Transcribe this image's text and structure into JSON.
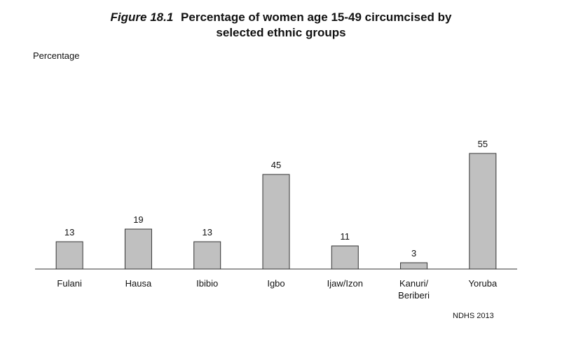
{
  "chart_data": {
    "type": "bar",
    "title_prefix": "Figure 18.1",
    "title_line1": "Percentage of women age 15-49 circumcised by",
    "title_line2": "selected ethnic groups",
    "ylabel": "Percentage",
    "xlabel": "",
    "source": "NDHS 2013",
    "categories": [
      [
        "Fulani"
      ],
      [
        "Hausa"
      ],
      [
        "Ibibio"
      ],
      [
        "Igbo"
      ],
      [
        "Ijaw/Izon"
      ],
      [
        "Kanuri/",
        "Beriberi"
      ],
      [
        "Yoruba"
      ]
    ],
    "values": [
      13,
      19,
      13,
      45,
      11,
      3,
      55
    ],
    "ylim": [
      0,
      60
    ],
    "grid": false,
    "bar_color": "#c0c0c0"
  }
}
